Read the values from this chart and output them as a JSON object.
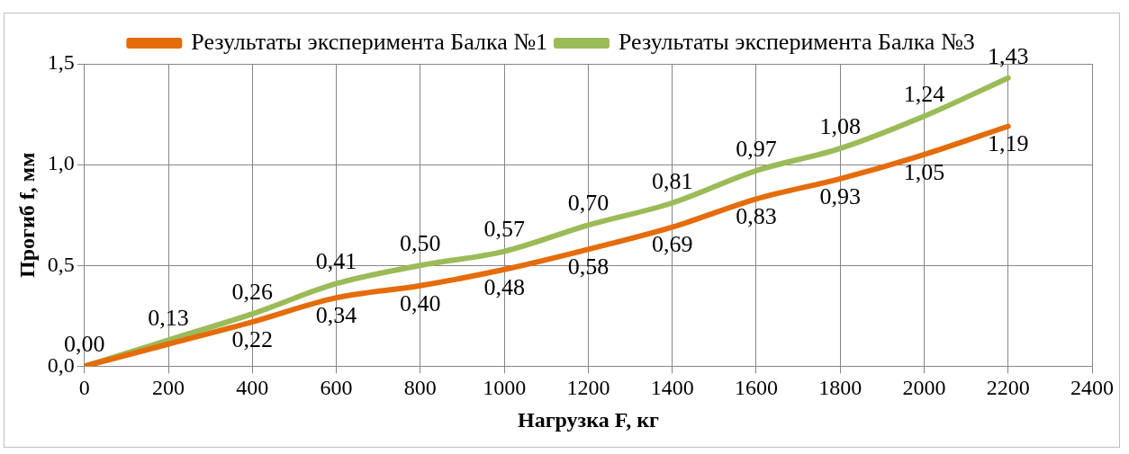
{
  "chart_data": {
    "type": "line",
    "xlabel": "Нагрузка F, кг",
    "ylabel": "Прогиб f, мм",
    "x": [
      0,
      200,
      400,
      600,
      800,
      1000,
      1200,
      1400,
      1600,
      1800,
      2000,
      2200
    ],
    "series": [
      {
        "name": "Результаты эксперимента Балка №1",
        "color": "#e46c0a",
        "values": [
          0,
          0.11,
          0.22,
          0.34,
          0.4,
          0.48,
          0.58,
          0.69,
          0.83,
          0.93,
          1.05,
          1.19
        ],
        "value_labels": [
          null,
          null,
          "0,22",
          "0,34",
          "0,40",
          "0,48",
          "0,58",
          "0,69",
          "0,83",
          "0,93",
          "1,05",
          "1,19"
        ]
      },
      {
        "name": "Результаты эксперимента Балка №3",
        "color": "#9bbb59",
        "values": [
          0,
          0.13,
          0.26,
          0.41,
          0.5,
          0.57,
          0.7,
          0.81,
          0.97,
          1.08,
          1.24,
          1.43
        ],
        "value_labels": [
          "0,00",
          "0,13",
          "0,26",
          "0,41",
          "0,50",
          "0,57",
          "0,70",
          "0,81",
          "0,97",
          "1,08",
          "1,24",
          "1,43"
        ]
      }
    ],
    "xlim": [
      0,
      2400
    ],
    "xticks": [
      0,
      200,
      400,
      600,
      800,
      1000,
      1200,
      1400,
      1600,
      1800,
      2000,
      2200,
      2400
    ],
    "ylim": [
      0,
      1.5
    ],
    "yticks": [
      {
        "value": 0,
        "label": "0,0"
      },
      {
        "value": 0.5,
        "label": "0,5"
      },
      {
        "value": 1,
        "label": "1,0"
      },
      {
        "value": 1.5,
        "label": "1,5"
      }
    ],
    "grid": true,
    "legend": "top",
    "marker": "none",
    "line_style": "solid"
  }
}
